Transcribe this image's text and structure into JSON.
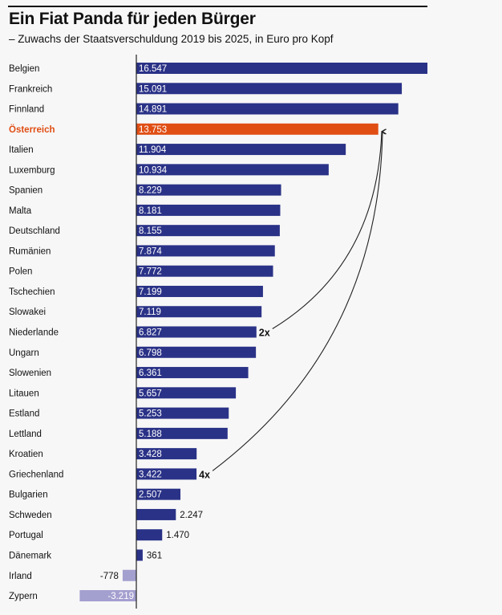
{
  "title": "Ein Fiat Panda für jeden Bürger",
  "subtitle": "– Zuwachs der Staatsverschuldung 2019 bis 2025, in Euro pro Kopf",
  "chart_data": {
    "type": "bar",
    "orientation": "horizontal",
    "title": "Ein Fiat Panda für jeden Bürger",
    "subtitle": "– Zuwachs der Staatsverschuldung 2019 bis 2025, in Euro pro Kopf",
    "categories": [
      "Belgien",
      "Frankreich",
      "Finnland",
      "Österreich",
      "Italien",
      "Luxemburg",
      "Spanien",
      "Malta",
      "Deutschland",
      "Rumänien",
      "Polen",
      "Tschechien",
      "Slowakei",
      "Niederlande",
      "Ungarn",
      "Slowenien",
      "Litauen",
      "Estland",
      "Lettland",
      "Kroatien",
      "Griechenland",
      "Bulgarien",
      "Schweden",
      "Portugal",
      "Dänemark",
      "Irland",
      "Zypern"
    ],
    "values": [
      16547,
      15091,
      14891,
      13753,
      11904,
      10934,
      8229,
      8181,
      8155,
      7874,
      7772,
      7199,
      7119,
      6827,
      6798,
      6361,
      5657,
      5253,
      5188,
      3428,
      3422,
      2507,
      2247,
      1470,
      361,
      -778,
      -3219
    ],
    "value_labels": [
      "16.547",
      "15.091",
      "14.891",
      "13.753",
      "11.904",
      "10.934",
      "8.229",
      "8.181",
      "8.155",
      "7.874",
      "7.772",
      "7.199",
      "7.119",
      "6.827",
      "6.798",
      "6.361",
      "5.657",
      "5.253",
      "5.188",
      "3.428",
      "3.422",
      "2.507",
      "2.247",
      "1.470",
      "361",
      "-778",
      "-3.219"
    ],
    "highlight": "Österreich",
    "xlim": [
      -3219,
      16547
    ],
    "grid": false,
    "annotations": [
      {
        "text": "2x",
        "from": "Niederlande",
        "to": "Österreich"
      },
      {
        "text": "4x",
        "from": "Griechenland",
        "to": "Österreich"
      }
    ],
    "colors": {
      "positive": "#2a3287",
      "highlight": "#e04e14",
      "negative": "#a39fcf",
      "text": "#111111"
    }
  }
}
